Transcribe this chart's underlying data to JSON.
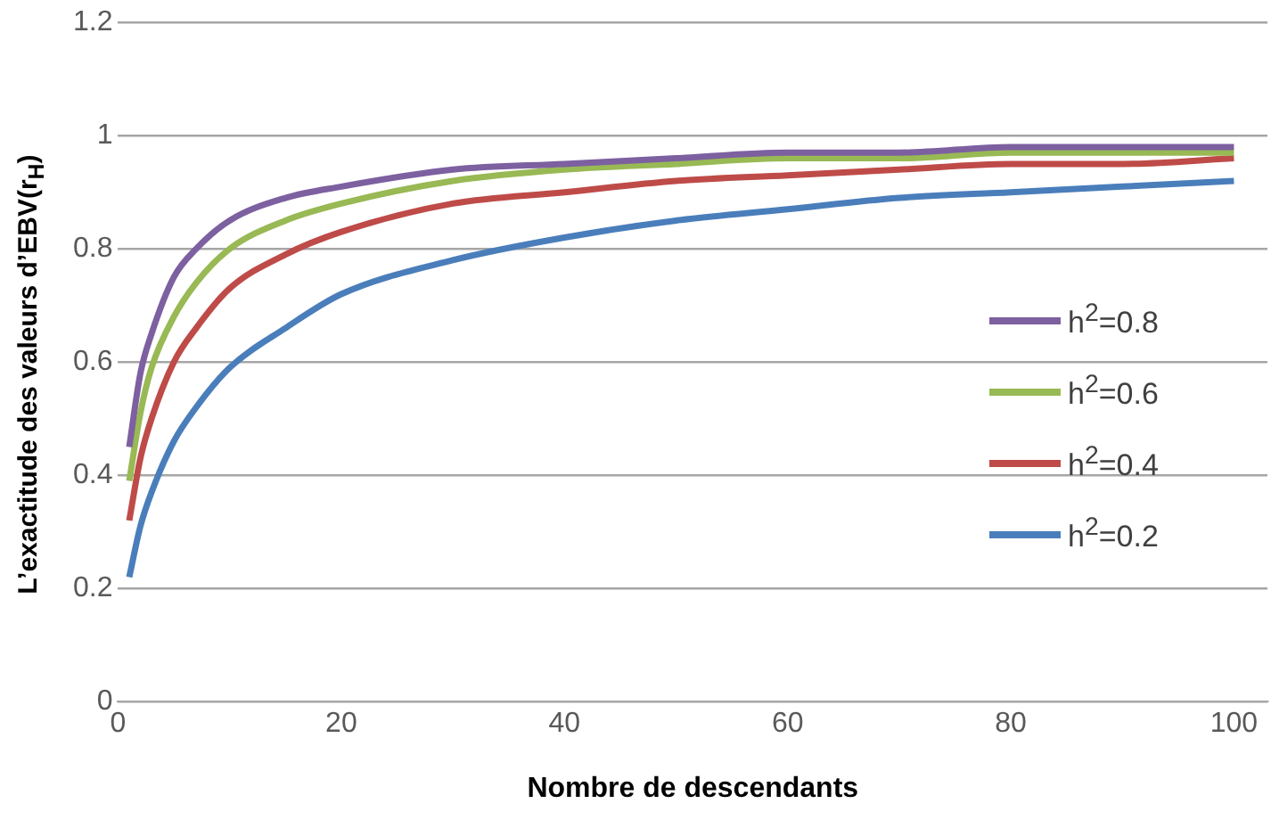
{
  "chart_data": {
    "type": "line",
    "xlabel": "Nombre de descendants",
    "ylabel": "L’exactitude des valeurs d’EBV(r$_{H}$)",
    "x": [
      1,
      2,
      3,
      5,
      7,
      10,
      15,
      20,
      30,
      40,
      50,
      60,
      70,
      80,
      90,
      100
    ],
    "series": [
      {
        "name": "h$^{2}$=0.8",
        "color": "#7d60a0",
        "values": [
          0.45,
          0.58,
          0.65,
          0.75,
          0.8,
          0.85,
          0.89,
          0.91,
          0.94,
          0.95,
          0.96,
          0.97,
          0.97,
          0.98,
          0.98,
          0.98
        ]
      },
      {
        "name": "h$^{2}$=0.6",
        "color": "#98b954",
        "values": [
          0.39,
          0.51,
          0.59,
          0.68,
          0.74,
          0.8,
          0.85,
          0.88,
          0.92,
          0.94,
          0.95,
          0.96,
          0.96,
          0.97,
          0.97,
          0.97
        ]
      },
      {
        "name": "h$^{2}$=0.4",
        "color": "#be4b48",
        "values": [
          0.32,
          0.43,
          0.5,
          0.6,
          0.66,
          0.73,
          0.79,
          0.83,
          0.88,
          0.9,
          0.92,
          0.93,
          0.94,
          0.95,
          0.95,
          0.96
        ]
      },
      {
        "name": "h$^{2}$=0.2",
        "color": "#4a7ebb",
        "values": [
          0.22,
          0.31,
          0.37,
          0.46,
          0.52,
          0.59,
          0.66,
          0.72,
          0.78,
          0.82,
          0.85,
          0.87,
          0.89,
          0.9,
          0.91,
          0.92
        ]
      }
    ],
    "xlim": [
      0,
      103
    ],
    "xticks": [
      0,
      20,
      40,
      60,
      80,
      100
    ],
    "ylim": [
      0,
      1.2
    ],
    "yticks": [
      0,
      0.2,
      0.4,
      0.6,
      0.8,
      1,
      1.2
    ],
    "grid": "y",
    "legend": "right",
    "marker": "none",
    "line_style": "solid"
  }
}
